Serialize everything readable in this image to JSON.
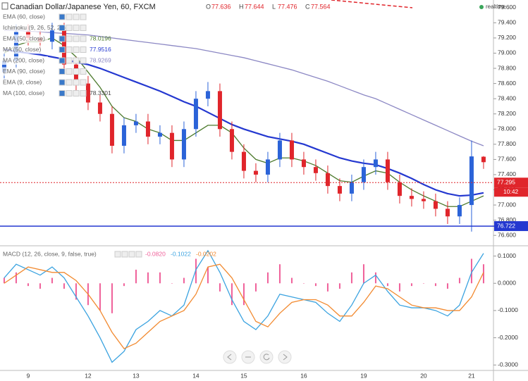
{
  "header": {
    "symbol": "Canadian Dollar/Japanese Yen, 60, FXCM",
    "ohlc": [
      {
        "name": "O",
        "value": 77.636
      },
      {
        "name": "H",
        "value": 77.644
      },
      {
        "name": "L",
        "value": 77.476
      },
      {
        "name": "C",
        "value": 77.564
      }
    ],
    "status": "realtime"
  },
  "chart_data": [
    {
      "type": "candlestick",
      "up_color": "#2b63d8",
      "down_color": "#e0252b",
      "open": [
        78.75,
        78.9,
        79.28,
        79.2,
        79.15,
        79.3,
        78.85,
        78.6,
        78.35,
        78.2,
        77.78,
        78.05,
        78.1,
        77.9,
        77.95,
        77.6,
        78.0,
        78.4,
        78.5,
        78.0,
        77.7,
        77.45,
        77.4,
        77.6,
        77.85,
        77.6,
        77.5,
        77.42,
        77.25,
        77.15,
        77.3,
        77.5,
        77.6,
        77.3,
        77.12,
        77.08,
        77.05,
        76.95,
        76.85,
        77.0,
        77.636
      ],
      "high": [
        79.0,
        79.38,
        79.38,
        79.3,
        79.4,
        79.4,
        78.95,
        78.7,
        78.45,
        78.3,
        78.15,
        78.2,
        78.2,
        78.05,
        78.05,
        78.1,
        78.5,
        78.62,
        78.6,
        78.1,
        77.8,
        77.55,
        77.7,
        77.95,
        77.95,
        77.7,
        77.6,
        77.52,
        77.35,
        77.4,
        77.6,
        77.7,
        77.7,
        77.4,
        77.22,
        77.18,
        77.15,
        77.05,
        77.1,
        77.85,
        77.644
      ],
      "low": [
        78.65,
        78.8,
        79.1,
        79.05,
        79.05,
        78.75,
        78.5,
        78.25,
        78.1,
        77.68,
        77.68,
        77.95,
        77.8,
        77.8,
        77.5,
        77.5,
        77.9,
        78.3,
        77.9,
        77.6,
        77.35,
        77.3,
        77.3,
        77.5,
        77.5,
        77.4,
        77.32,
        77.15,
        77.05,
        77.05,
        77.2,
        77.4,
        77.2,
        77.02,
        76.98,
        76.95,
        76.85,
        76.75,
        76.75,
        76.65,
        77.476
      ],
      "close": [
        78.9,
        79.28,
        79.2,
        79.15,
        79.3,
        78.85,
        78.6,
        78.35,
        78.2,
        77.78,
        78.05,
        78.1,
        77.9,
        77.95,
        77.6,
        78.0,
        78.4,
        78.5,
        78.0,
        77.7,
        77.45,
        77.4,
        77.6,
        77.85,
        77.6,
        77.5,
        77.42,
        77.25,
        77.15,
        77.3,
        77.5,
        77.6,
        77.3,
        77.12,
        77.08,
        77.05,
        76.95,
        76.85,
        77.0,
        77.64,
        77.564
      ],
      "series": [
        {
          "name": "EMA (60, close)"
        },
        {
          "name": "Ichimoku (9, 26, 52, 26)"
        },
        {
          "name": "EMA (50, close)",
          "value": 78.0196,
          "color": "#4c7a2c",
          "values": [
            79.0,
            79.1,
            79.15,
            79.15,
            79.2,
            79.1,
            78.95,
            78.75,
            78.55,
            78.3,
            78.15,
            78.1,
            78.0,
            77.95,
            77.85,
            77.85,
            77.95,
            78.05,
            78.05,
            77.95,
            77.75,
            77.6,
            77.55,
            77.62,
            77.62,
            77.58,
            77.52,
            77.42,
            77.32,
            77.3,
            77.38,
            77.45,
            77.42,
            77.3,
            77.2,
            77.12,
            77.05,
            76.98,
            76.98,
            77.05,
            77.12
          ]
        },
        {
          "name": "MA (50, close)",
          "value": 77.9516,
          "color": "#2438d0",
          "values": [
            79.05,
            79.02,
            79.0,
            78.98,
            78.95,
            78.92,
            78.88,
            78.85,
            78.8,
            78.74,
            78.68,
            78.62,
            78.56,
            78.5,
            78.43,
            78.36,
            78.3,
            78.22,
            78.14,
            78.06,
            78.0,
            77.95,
            77.9,
            77.87,
            77.84,
            77.8,
            77.74,
            77.68,
            77.62,
            77.58,
            77.55,
            77.53,
            77.48,
            77.42,
            77.35,
            77.27,
            77.2,
            77.15,
            77.12,
            77.13,
            77.16
          ]
        },
        {
          "name": "MA (200, close)",
          "value": 78.9269,
          "color": "#8c88c4",
          "values": [
            79.3,
            79.3,
            79.29,
            79.28,
            79.27,
            79.26,
            79.25,
            79.24,
            79.22,
            79.2,
            79.18,
            79.16,
            79.14,
            79.12,
            79.1,
            79.08,
            79.06,
            79.03,
            79.0,
            78.97,
            78.94,
            78.9,
            78.86,
            78.82,
            78.78,
            78.73,
            78.68,
            78.63,
            78.57,
            78.51,
            78.45,
            78.4,
            78.33,
            78.26,
            78.19,
            78.12,
            78.05,
            77.98,
            77.91,
            77.84,
            77.78
          ]
        },
        {
          "name": "EMA (90, close)"
        },
        {
          "name": "EMA (9, close)"
        },
        {
          "name": "MA (100, close)",
          "value": 78.3301
        }
      ],
      "ylim": [
        76.5,
        79.7
      ],
      "yticks": [
        {
          "value": 76.6,
          "label": "76.600"
        },
        {
          "value": 76.8,
          "label": "76.800"
        },
        {
          "value": 77.0,
          "label": "77.000"
        },
        {
          "value": 77.2,
          "label": "77.200"
        },
        {
          "value": 77.4,
          "label": "77.400"
        },
        {
          "value": 77.6,
          "label": "77.600"
        },
        {
          "value": 77.8,
          "label": "77.800"
        },
        {
          "value": 78.0,
          "label": "78.000"
        },
        {
          "value": 78.2,
          "label": "78.200"
        },
        {
          "value": 78.4,
          "label": "78.400"
        },
        {
          "value": 78.6,
          "label": "78.600"
        },
        {
          "value": 78.8,
          "label": "78.800"
        },
        {
          "value": 79.0,
          "label": "79.000"
        },
        {
          "value": 79.2,
          "label": "79.200"
        },
        {
          "value": 79.4,
          "label": "79.400"
        },
        {
          "value": 79.6,
          "label": "79.600"
        }
      ],
      "price_line": {
        "value": 77.295,
        "color": "#e0252b"
      },
      "countdown": "10:42",
      "horizontal_line": {
        "value": 76.722,
        "color": "#2438d0"
      }
    },
    {
      "type": "macd",
      "title": "MACD (12, 26, close, 9, false, true)",
      "categories": [
        null,
        null,
        "9",
        null,
        null,
        null,
        null,
        "12",
        null,
        null,
        null,
        "13",
        null,
        null,
        null,
        null,
        "14",
        null,
        null,
        null,
        "15",
        null,
        null,
        null,
        null,
        "16",
        null,
        null,
        null,
        null,
        "19",
        null,
        null,
        null,
        null,
        "20",
        null,
        null,
        null,
        "21",
        null
      ],
      "histogram": {
        "color": "#f0609a",
        "readout": {
          "value": -0.082,
          "label": "-0.0820"
        },
        "values": [
          0.02,
          0.04,
          -0.01,
          -0.02,
          0.02,
          -0.02,
          -0.06,
          -0.08,
          -0.1,
          -0.11,
          -0.01,
          0.05,
          0.04,
          0.04,
          0.0,
          0.02,
          0.09,
          0.06,
          -0.03,
          -0.08,
          -0.08,
          -0.03,
          0.04,
          0.07,
          0.02,
          0.0,
          -0.01,
          -0.03,
          -0.02,
          0.04,
          0.07,
          0.04,
          -0.01,
          -0.03,
          -0.01,
          0.0,
          -0.01,
          -0.02,
          0.02,
          0.09,
          0.07
        ]
      },
      "macd": {
        "color": "#3ba3e0",
        "readout": {
          "value": -0.1022,
          "label": "-0.1022"
        },
        "values": [
          0.02,
          0.07,
          0.05,
          0.03,
          0.06,
          0.02,
          -0.05,
          -0.12,
          -0.2,
          -0.29,
          -0.25,
          -0.17,
          -0.14,
          -0.1,
          -0.12,
          -0.08,
          0.05,
          0.12,
          0.04,
          -0.06,
          -0.14,
          -0.17,
          -0.12,
          -0.04,
          -0.05,
          -0.06,
          -0.07,
          -0.11,
          -0.14,
          -0.08,
          0.0,
          0.03,
          -0.03,
          -0.08,
          -0.09,
          -0.09,
          -0.1,
          -0.12,
          -0.08,
          0.04,
          0.11
        ]
      },
      "signal": {
        "color": "#f28a30",
        "readout": {
          "value": -0.0202,
          "label": "-0.0202"
        },
        "values": [
          0.0,
          0.03,
          0.06,
          0.05,
          0.04,
          0.04,
          0.01,
          -0.04,
          -0.1,
          -0.18,
          -0.24,
          -0.22,
          -0.18,
          -0.14,
          -0.12,
          -0.1,
          -0.04,
          0.06,
          0.07,
          0.02,
          -0.06,
          -0.14,
          -0.16,
          -0.11,
          -0.07,
          -0.06,
          -0.06,
          -0.08,
          -0.12,
          -0.12,
          -0.07,
          -0.01,
          -0.02,
          -0.05,
          -0.08,
          -0.09,
          -0.09,
          -0.1,
          -0.1,
          -0.05,
          0.04
        ]
      },
      "ylim": [
        -0.32,
        0.13
      ],
      "yticks": [
        {
          "value": 0.1,
          "label": "0.1000"
        },
        {
          "value": 0,
          "label": "0.0000"
        },
        {
          "value": -0.1,
          "label": "-0.1000"
        },
        {
          "value": -0.2,
          "label": "-0.2000"
        },
        {
          "value": -0.3,
          "label": "-0.3000"
        }
      ]
    }
  ]
}
